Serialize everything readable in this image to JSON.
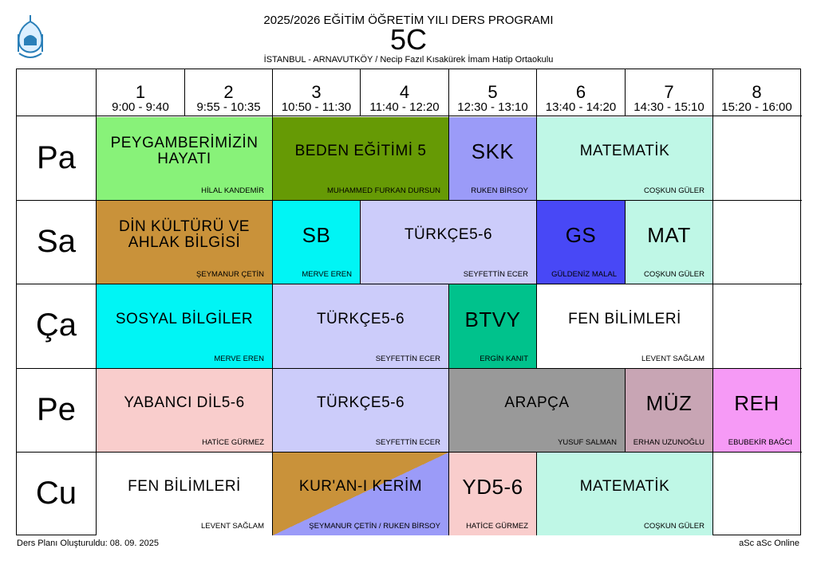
{
  "header": {
    "title": "2025/2026 EĞİTİM ÖĞRETİM YILI DERS PROGRAMI",
    "class_name": "5C",
    "school": "İSTANBUL - ARNAVUTKÖY / Necip Fazıl Kısakürek İmam Hatip Ortaokulu"
  },
  "footer": {
    "created": "Ders Planı Oluşturuldu: 08. 09. 2025",
    "software": "aSc aSc Online"
  },
  "periods": [
    {
      "num": "1",
      "time": "9:00 - 9:40"
    },
    {
      "num": "2",
      "time": "9:55 - 10:35"
    },
    {
      "num": "3",
      "time": "10:50 - 11:30"
    },
    {
      "num": "4",
      "time": "11:40 - 12:20"
    },
    {
      "num": "5",
      "time": "12:30 - 13:10"
    },
    {
      "num": "6",
      "time": "13:40 - 14:20"
    },
    {
      "num": "7",
      "time": "14:30 - 15:10"
    },
    {
      "num": "8",
      "time": "15:20 - 16:00"
    }
  ],
  "days": [
    "Pa",
    "Sa",
    "Ça",
    "Pe",
    "Cu"
  ],
  "lessons": {
    "pa": [
      {
        "subject": "PEYGAMBERİMİZİN HAYATI",
        "teacher": "HİLAL KANDEMİR",
        "color": "#88f279"
      },
      {
        "subject": "BEDEN EĞİTİMİ 5",
        "teacher": "MUHAMMED FURKAN DURSUN",
        "color": "#669a05"
      },
      {
        "subject": "SKK",
        "teacher": "RUKEN BİRSOY",
        "color": "#9b9bf8"
      },
      {
        "subject": "MATEMATİK",
        "teacher": "COŞKUN GÜLER",
        "color": "#bff7e6"
      }
    ],
    "sa": [
      {
        "subject": "DİN KÜLTÜRÜ VE AHLAK BİLGİSİ",
        "teacher": "ŞEYMANUR ÇETİN",
        "color": "#c9923a"
      },
      {
        "subject": "SB",
        "teacher": "MERVE EREN",
        "color": "#00f5f5"
      },
      {
        "subject": "TÜRKÇE5-6",
        "teacher": "SEYFETTİN ECER",
        "color": "#ccccfa"
      },
      {
        "subject": "GS",
        "teacher": "GÜLDENİZ MALAL",
        "color": "#4848f6"
      },
      {
        "subject": "MAT",
        "teacher": "COŞKUN GÜLER",
        "color": "#bff7e6"
      }
    ],
    "ca": [
      {
        "subject": "SOSYAL BİLGİLER",
        "teacher": "MERVE EREN",
        "color": "#00f5f5"
      },
      {
        "subject": "TÜRKÇE5-6",
        "teacher": "SEYFETTİN ECER",
        "color": "#ccccfa"
      },
      {
        "subject": "BTVY",
        "teacher": "ERGİN KANIT",
        "color": "#00c28c"
      },
      {
        "subject": "FEN BİLİMLERİ",
        "teacher": "LEVENT SAĞLAM",
        "color": "#ffffff"
      }
    ],
    "pe": [
      {
        "subject": "YABANCI DİL5-6",
        "teacher": "HATİCE GÜRMEZ",
        "color": "#f9cdcc"
      },
      {
        "subject": "TÜRKÇE5-6",
        "teacher": "SEYFETTİN ECER",
        "color": "#ccccfa"
      },
      {
        "subject": "ARAPÇA",
        "teacher": "YUSUF SALMAN",
        "color": "#999999"
      },
      {
        "subject": "MÜZ",
        "teacher": "ERHAN UZUNOĞLU",
        "color": "#c8a5b4"
      },
      {
        "subject": "REH",
        "teacher": "EBUBEKİR BAĞCI",
        "color": "#f69af6"
      }
    ],
    "cu": [
      {
        "subject": "FEN BİLİMLERİ",
        "teacher": "LEVENT SAĞLAM",
        "color": "#ffffff"
      },
      {
        "subject": "KUR'AN-I KERİM",
        "teacher": "ŞEYMANUR ÇETİN / RUKEN BİRSOY",
        "color": "#c9923a",
        "color2": "#9b9bf8"
      },
      {
        "subject": "YD5-6",
        "teacher": "HATİCE GÜRMEZ",
        "color": "#f9cdcc"
      },
      {
        "subject": "MATEMATİK",
        "teacher": "COŞKUN GÜLER",
        "color": "#bff7e6"
      }
    ]
  }
}
